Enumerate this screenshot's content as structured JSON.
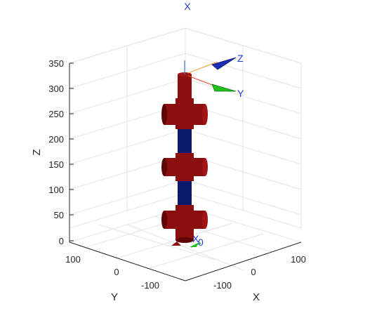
{
  "title": "X",
  "axes": {
    "z_label": "Z",
    "y_label": "Y",
    "x_label": "X",
    "z_ticks": [
      "350",
      "300",
      "250",
      "200",
      "150",
      "100",
      "50",
      "0"
    ],
    "y_ticks": [
      "100",
      "0",
      "-100"
    ],
    "x_ticks": [
      "-100",
      "0",
      "100"
    ]
  },
  "end_effector_frame": {
    "z": "Z",
    "y": "Y"
  },
  "base_frame": {
    "x": "X",
    "sub": "0"
  },
  "colors": {
    "link_red": "#8b0f0f",
    "link_red_dark": "#5e0606",
    "link_blue": "#0b1a6b",
    "grid": "#e3e3e3",
    "axis_line": "#262626",
    "frame_label": "#1f3fd6",
    "cone_blue": "#1a2fb3",
    "cone_green": "#1fbf1f"
  }
}
